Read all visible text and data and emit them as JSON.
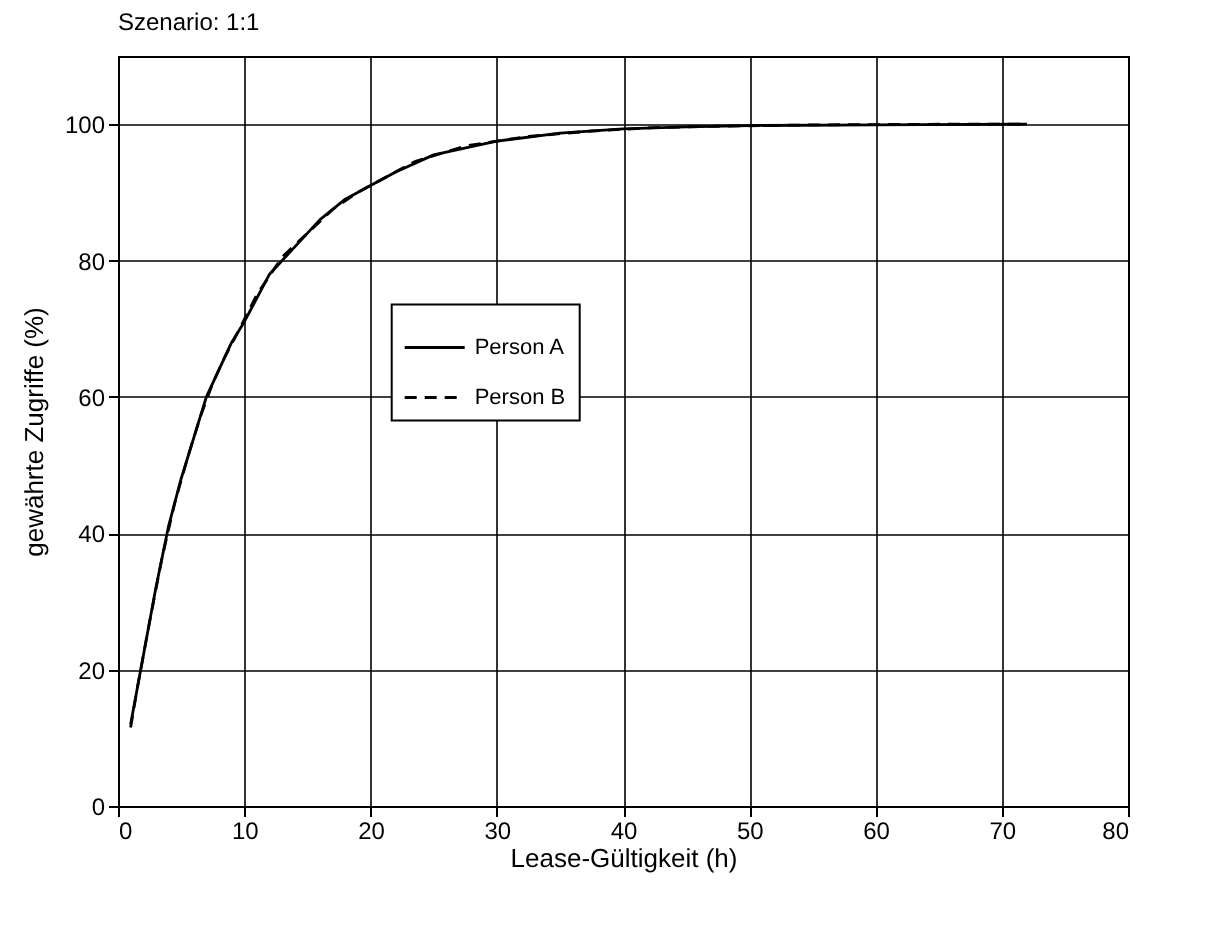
{
  "chart_data": {
    "type": "line",
    "title": "Szenario: 1:1",
    "xlabel": "Lease-Gültigkeit (h)",
    "ylabel": "gewährte Zugriffe (%)",
    "xlim": [
      0,
      80
    ],
    "xticks": [
      0,
      10,
      20,
      30,
      40,
      50,
      60,
      70,
      80
    ],
    "ylim": [
      0,
      110
    ],
    "yticks": [
      0,
      20,
      40,
      60,
      80,
      100
    ],
    "grid": true,
    "legend": "center",
    "series": [
      {
        "name": "Person A",
        "color": "#000000",
        "line_style": "solid",
        "x": [
          1,
          2,
          3,
          4,
          5,
          6,
          7,
          8,
          9,
          10,
          12,
          14,
          16,
          18,
          20,
          22,
          25,
          30,
          35,
          40,
          45,
          50,
          60,
          72
        ],
        "values": [
          12,
          22,
          32,
          41,
          48,
          54,
          60,
          64,
          68,
          71,
          78,
          82,
          86,
          89,
          91,
          93,
          95.5,
          97.5,
          98.7,
          99.3,
          99.6,
          99.8,
          99.9,
          100
        ]
      },
      {
        "name": "Person B",
        "color": "#000000",
        "line_style": "dashed",
        "x": [
          1,
          1.5,
          2.5,
          3.5,
          4.5,
          5.5,
          6.5,
          7.5,
          8.5,
          9.5,
          11,
          13,
          15,
          17,
          19,
          21,
          23.5,
          27.5,
          32.5,
          37.5,
          42.5,
          47.5,
          55,
          66,
          72
        ],
        "values": [
          11.5,
          17,
          27,
          36.5,
          44.5,
          51,
          57,
          62,
          66,
          69.5,
          75,
          80.5,
          84,
          87.5,
          90,
          92,
          94.5,
          96.8,
          98.2,
          99,
          99.5,
          99.7,
          99.9,
          100,
          100
        ]
      }
    ]
  }
}
